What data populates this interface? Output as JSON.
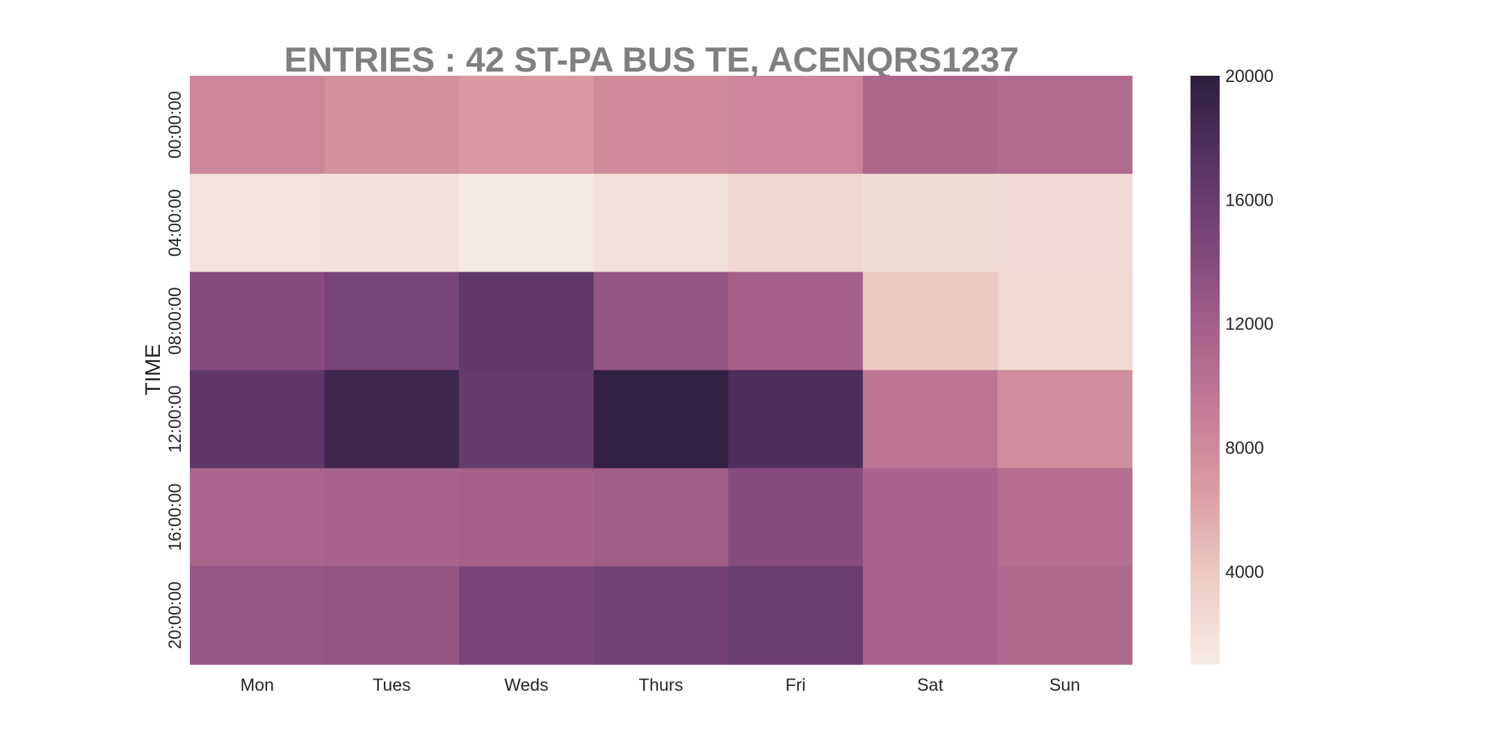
{
  "chart_data": {
    "type": "heatmap",
    "title": "ENTRIES : 42 ST-PA BUS TE, ACENQRS1237",
    "xlabel": "",
    "ylabel": "TIME",
    "x_categories": [
      "Mon",
      "Tues",
      "Weds",
      "Thurs",
      "Fri",
      "Sat",
      "Sun"
    ],
    "y_categories": [
      "00:00:00",
      "04:00:00",
      "08:00:00",
      "12:00:00",
      "16:00:00",
      "20:00:00"
    ],
    "values": [
      [
        8300,
        7500,
        6900,
        7900,
        8400,
        11200,
        10800
      ],
      [
        1700,
        1900,
        1300,
        2000,
        2800,
        2300,
        2500
      ],
      [
        13900,
        14900,
        16600,
        12900,
        11800,
        3900,
        2700
      ],
      [
        16700,
        18800,
        16200,
        19600,
        17800,
        9800,
        7800
      ],
      [
        11400,
        11600,
        11800,
        12100,
        13900,
        11600,
        10400
      ],
      [
        12700,
        12900,
        14700,
        15200,
        15900,
        11600,
        11000
      ]
    ],
    "colorbar": {
      "min": 1000,
      "max": 20000,
      "ticks": [
        "4000",
        "8000",
        "12000",
        "16000",
        "20000"
      ],
      "colors": [
        "#f7ebe6",
        "#edcdc3",
        "#dc9fa5",
        "#c57c97",
        "#a4608a",
        "#7e467a",
        "#563363",
        "#2c1e3d"
      ]
    },
    "grid": false,
    "legend": "colorbar-right"
  }
}
